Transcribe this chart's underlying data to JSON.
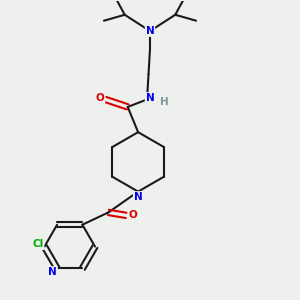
{
  "background_color": "#edf0ed",
  "bond_color": "#1a1a1a",
  "atom_colors": {
    "N": "#0000ee",
    "O": "#dd0000",
    "Cl": "#00aa00",
    "H": "#7a9a9a",
    "C": "#1a1a1a"
  },
  "figsize": [
    3.0,
    3.0
  ],
  "dpi": 100,
  "lw": 1.5,
  "fs": 7.5
}
